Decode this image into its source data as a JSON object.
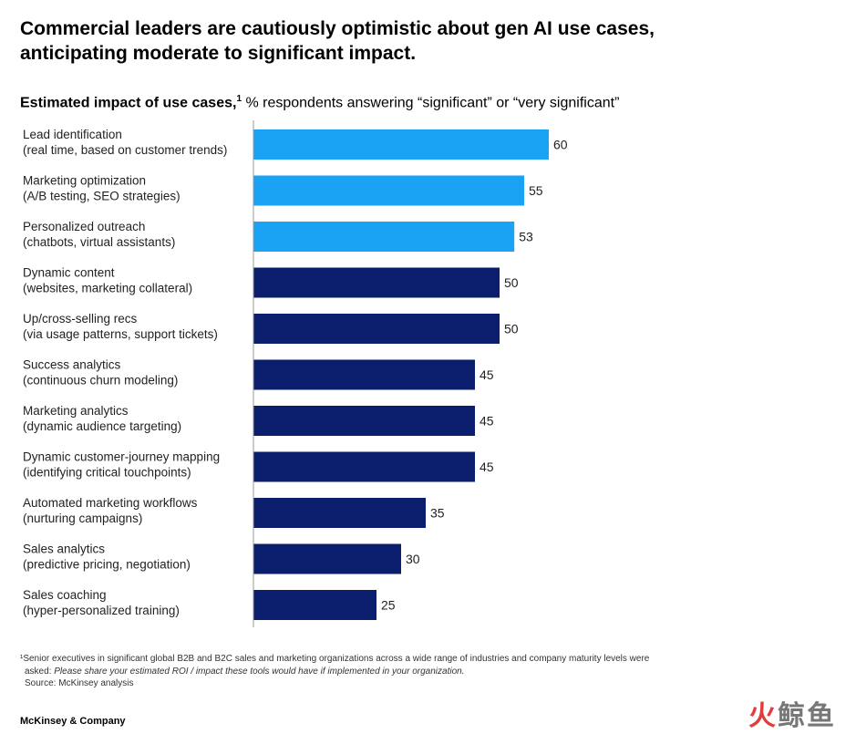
{
  "title_line1": "Commercial leaders are cautiously optimistic about gen AI use cases,",
  "title_line2": "anticipating moderate to significant impact.",
  "subtitle_bold": "Estimated impact of use cases,",
  "subtitle_sup": "1",
  "subtitle_rest": " % respondents answering “significant” or “very significant”",
  "footnote": {
    "line1": "¹Senior executives in significant global B2B and B2C sales and marketing organizations across a wide range of industries and company maturity levels were",
    "line2_prefix": "asked: ",
    "line2_italic": "Please share your estimated ROI / impact these tools would have if implemented in your organization.",
    "source": "Source: McKinsey analysis"
  },
  "brand": "McKinsey & Company",
  "watermark": {
    "part1": "火",
    "part2": "鲸鱼"
  },
  "colors": {
    "highlight": "#1aa3f5",
    "standard": "#0b1e6e",
    "axis": "#999999"
  },
  "chart_data": {
    "type": "bar",
    "orientation": "horizontal",
    "categories": [
      [
        "Lead identification",
        "(real time, based on customer trends)"
      ],
      [
        "Marketing optimization",
        "(A/B testing, SEO strategies)"
      ],
      [
        "Personalized outreach",
        "(chatbots, virtual assistants)"
      ],
      [
        "Dynamic content",
        "(websites, marketing collateral)"
      ],
      [
        "Up/cross-selling recs",
        "(via usage patterns, support tickets)"
      ],
      [
        "Success analytics",
        "(continuous churn modeling)"
      ],
      [
        "Marketing analytics",
        "(dynamic audience targeting)"
      ],
      [
        "Dynamic customer-journey mapping",
        "(identifying critical touchpoints)"
      ],
      [
        "Automated marketing workflows",
        "(nurturing campaigns)"
      ],
      [
        "Sales analytics",
        "(predictive pricing, negotiation)"
      ],
      [
        "Sales coaching",
        "(hyper-personalized training)"
      ]
    ],
    "values": [
      60,
      55,
      53,
      50,
      50,
      45,
      45,
      45,
      35,
      30,
      25
    ],
    "highlighted": [
      true,
      true,
      true,
      false,
      false,
      false,
      false,
      false,
      false,
      false,
      false
    ],
    "xlim": [
      0,
      100
    ],
    "grid": false
  }
}
